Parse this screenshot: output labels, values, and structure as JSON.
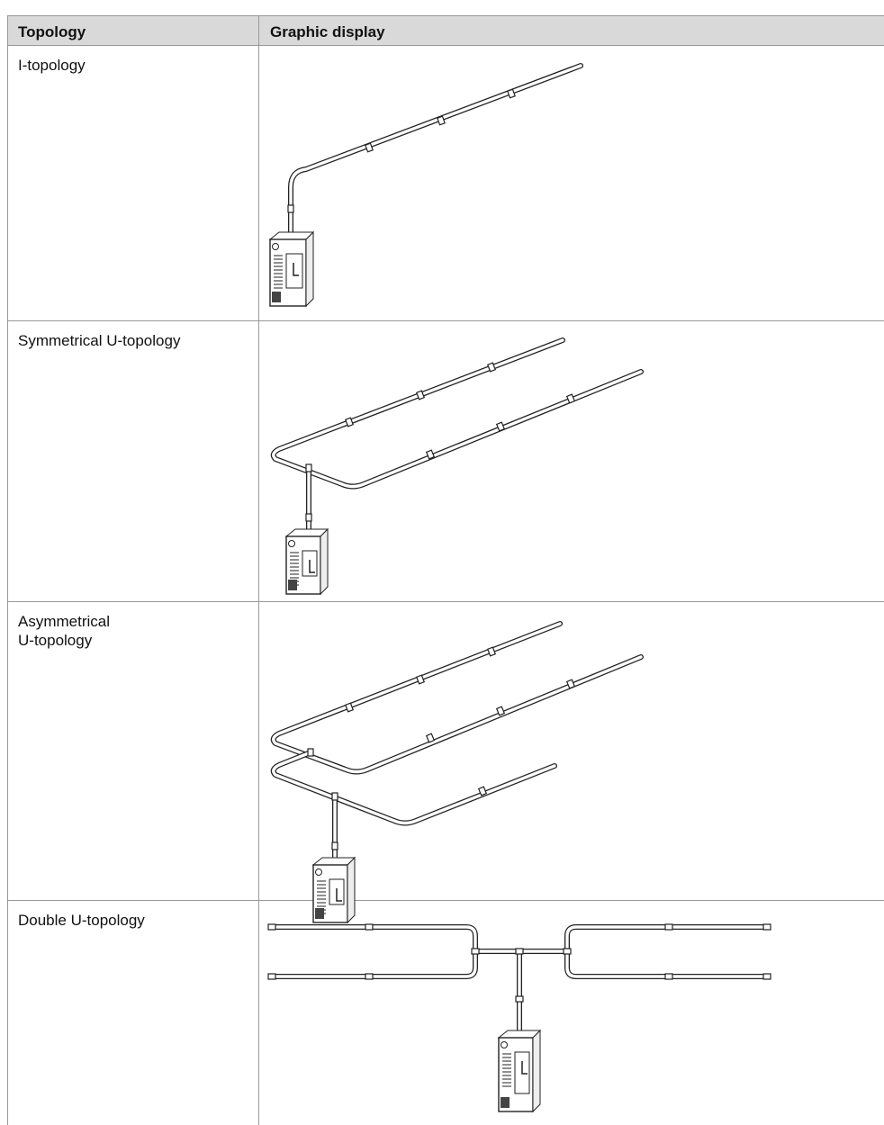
{
  "table": {
    "header": [
      "Topology",
      "Graphic display"
    ],
    "rows": [
      "I-topology",
      "Symmetrical U-topology",
      "Asymmetrical\nU-topology",
      "Double U-topology"
    ]
  }
}
